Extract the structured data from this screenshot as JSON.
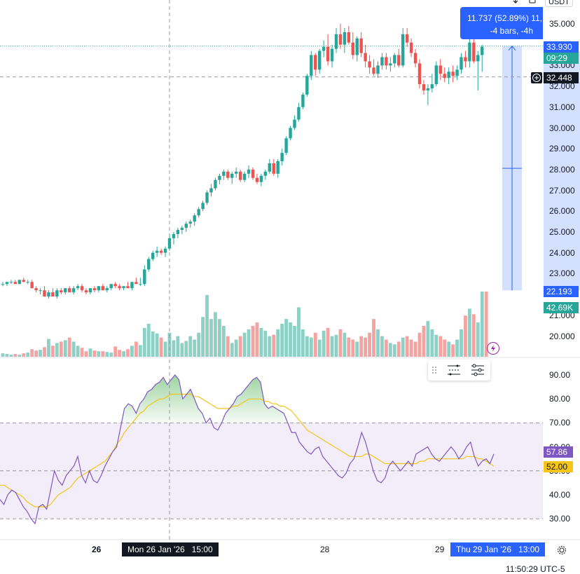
{
  "currency": "USDT",
  "clock": "11:50:29 UTC-5",
  "colors": {
    "up": "#26a69a",
    "down": "#ef5350",
    "up_vol": "#8dd0c6",
    "down_vol": "#f4a3a1",
    "rsi": "#7e57c2",
    "rsi_ma": "#f5c518",
    "measure": "#2962ff",
    "crosshair": "#9598a1"
  },
  "price_axis": {
    "ticks": [
      "35.000",
      "34.000",
      "33.000",
      "32.000",
      "31.000",
      "30.000",
      "29.000",
      "28.000",
      "27.000",
      "26.000",
      "25.000",
      "24.000",
      "23.000",
      "22.000",
      "21.000",
      "20.000"
    ],
    "last_price": "33.930",
    "countdown": "09:29",
    "crosshair_price": "32.448",
    "measure_low": "22.193",
    "volume_label": "42.69K"
  },
  "rsi_axis": {
    "ticks": [
      "90.00",
      "80.00",
      "70.00",
      "60.00",
      "50.00",
      "40.00",
      "30.00"
    ],
    "rsi_value": "57.86",
    "ma_value": "52.00"
  },
  "time_axis": {
    "labels": [
      "26",
      "28",
      "29"
    ],
    "crosshair_label": "Mon 26 Jan '26   15:00",
    "highlight_label": "Thu 29 Jan '26   13:00"
  },
  "measure_tooltip": {
    "line1": "11.737 (52.89%) 11,",
    "line2": "-4 bars, -4h"
  },
  "chart_data": {
    "type": "candlestick",
    "yrange": [
      19.5,
      35.5
    ],
    "candles": [
      [
        22.5,
        22.6,
        22.4,
        22.5
      ],
      [
        22.5,
        22.6,
        22.4,
        22.6
      ],
      [
        22.6,
        22.7,
        22.5,
        22.6
      ],
      [
        22.6,
        22.7,
        22.5,
        22.5
      ],
      [
        22.5,
        22.7,
        22.5,
        22.7
      ],
      [
        22.7,
        22.8,
        22.6,
        22.6
      ],
      [
        22.6,
        22.7,
        22.5,
        22.6
      ],
      [
        22.6,
        22.7,
        22.3,
        22.3
      ],
      [
        22.3,
        22.4,
        22.1,
        22.2
      ],
      [
        22.2,
        22.3,
        22.0,
        22.2
      ],
      [
        22.2,
        22.4,
        21.9,
        21.9
      ],
      [
        21.9,
        22.2,
        21.8,
        22.1
      ],
      [
        22.1,
        22.3,
        21.9,
        21.9
      ],
      [
        21.9,
        22.3,
        21.8,
        22.2
      ],
      [
        22.2,
        22.3,
        22.0,
        22.1
      ],
      [
        22.1,
        22.3,
        22.0,
        22.3
      ],
      [
        22.3,
        22.4,
        22.1,
        22.1
      ],
      [
        22.1,
        22.4,
        22.0,
        22.3
      ],
      [
        22.3,
        22.5,
        22.2,
        22.4
      ],
      [
        22.4,
        22.5,
        22.1,
        22.2
      ],
      [
        22.2,
        22.3,
        22.0,
        22.1
      ],
      [
        22.1,
        22.3,
        22.0,
        22.3
      ],
      [
        22.3,
        22.4,
        22.1,
        22.2
      ],
      [
        22.2,
        22.4,
        22.1,
        22.4
      ],
      [
        22.4,
        22.5,
        22.2,
        22.2
      ],
      [
        22.2,
        22.4,
        22.1,
        22.3
      ],
      [
        22.3,
        22.5,
        22.2,
        22.5
      ],
      [
        22.5,
        22.6,
        22.3,
        22.4
      ],
      [
        22.4,
        22.5,
        22.2,
        22.3
      ],
      [
        22.3,
        22.4,
        22.2,
        22.4
      ],
      [
        22.4,
        22.6,
        22.3,
        22.3
      ],
      [
        22.3,
        22.6,
        22.2,
        22.6
      ],
      [
        22.6,
        22.8,
        22.5,
        22.5
      ],
      [
        22.5,
        22.8,
        22.4,
        22.5
      ],
      [
        22.5,
        23.4,
        22.4,
        23.2
      ],
      [
        23.2,
        23.8,
        23.1,
        23.7
      ],
      [
        23.7,
        24.1,
        23.6,
        24.0
      ],
      [
        24.0,
        24.3,
        23.8,
        24.1
      ],
      [
        24.1,
        24.2,
        23.9,
        24.0
      ],
      [
        24.0,
        24.3,
        23.8,
        24.2
      ],
      [
        24.2,
        24.9,
        24.1,
        24.7
      ],
      [
        24.7,
        25.0,
        24.4,
        24.9
      ],
      [
        24.9,
        25.2,
        24.7,
        25.1
      ],
      [
        25.1,
        25.3,
        24.9,
        25.2
      ],
      [
        25.2,
        25.5,
        25.0,
        25.4
      ],
      [
        25.4,
        25.6,
        25.2,
        25.5
      ],
      [
        25.5,
        25.9,
        25.3,
        25.8
      ],
      [
        25.8,
        26.2,
        25.7,
        26.1
      ],
      [
        26.1,
        26.5,
        26.0,
        26.4
      ],
      [
        26.4,
        27.0,
        26.3,
        26.9
      ],
      [
        26.9,
        27.3,
        26.7,
        27.1
      ],
      [
        27.1,
        27.6,
        27.0,
        27.5
      ],
      [
        27.5,
        27.8,
        27.3,
        27.7
      ],
      [
        27.7,
        28.0,
        27.5,
        27.9
      ],
      [
        27.9,
        28.0,
        27.5,
        27.6
      ],
      [
        27.6,
        27.9,
        27.3,
        27.8
      ],
      [
        27.8,
        28.1,
        27.6,
        27.9
      ],
      [
        27.9,
        28.0,
        27.4,
        27.5
      ],
      [
        27.5,
        27.9,
        27.4,
        27.8
      ],
      [
        27.8,
        28.2,
        27.6,
        28.0
      ],
      [
        28.0,
        28.1,
        27.5,
        27.6
      ],
      [
        27.6,
        27.8,
        27.3,
        27.4
      ],
      [
        27.4,
        27.8,
        27.2,
        27.7
      ],
      [
        27.7,
        28.0,
        27.5,
        27.9
      ],
      [
        27.9,
        28.5,
        27.8,
        28.3
      ],
      [
        28.3,
        28.5,
        27.7,
        27.8
      ],
      [
        27.8,
        28.5,
        27.6,
        28.4
      ],
      [
        28.4,
        29.0,
        28.2,
        28.8
      ],
      [
        28.8,
        29.6,
        28.7,
        29.5
      ],
      [
        29.5,
        30.1,
        29.4,
        30.0
      ],
      [
        30.0,
        30.6,
        29.9,
        30.4
      ],
      [
        30.4,
        31.2,
        30.3,
        31.0
      ],
      [
        31.0,
        31.7,
        30.9,
        31.6
      ],
      [
        31.6,
        32.6,
        31.5,
        32.5
      ],
      [
        32.5,
        33.7,
        32.3,
        33.5
      ],
      [
        33.5,
        33.6,
        32.5,
        32.8
      ],
      [
        32.8,
        33.8,
        32.6,
        33.7
      ],
      [
        33.7,
        34.2,
        33.4,
        33.9
      ],
      [
        33.9,
        34.5,
        33.0,
        33.2
      ],
      [
        33.2,
        34.0,
        32.9,
        33.8
      ],
      [
        33.8,
        34.8,
        33.6,
        34.5
      ],
      [
        34.5,
        35.0,
        33.8,
        34.0
      ],
      [
        34.0,
        34.8,
        33.6,
        34.6
      ],
      [
        34.6,
        34.9,
        34.0,
        34.1
      ],
      [
        34.1,
        34.6,
        33.3,
        33.5
      ],
      [
        33.5,
        34.4,
        33.2,
        34.3
      ],
      [
        34.3,
        34.6,
        33.4,
        33.6
      ],
      [
        33.6,
        34.0,
        32.9,
        33.2
      ],
      [
        33.2,
        33.5,
        32.6,
        32.9
      ],
      [
        32.9,
        33.3,
        32.5,
        32.6
      ],
      [
        32.6,
        33.2,
        32.4,
        33.0
      ],
      [
        33.0,
        33.6,
        32.8,
        33.4
      ],
      [
        33.4,
        33.6,
        32.8,
        33.0
      ],
      [
        33.0,
        33.4,
        32.7,
        33.1
      ],
      [
        33.1,
        33.6,
        32.9,
        33.5
      ],
      [
        33.5,
        33.8,
        32.9,
        33.0
      ],
      [
        33.0,
        34.8,
        32.9,
        34.5
      ],
      [
        34.5,
        34.8,
        33.9,
        34.1
      ],
      [
        34.1,
        34.3,
        33.4,
        33.6
      ],
      [
        33.6,
        33.8,
        32.9,
        33.1
      ],
      [
        33.1,
        33.3,
        31.9,
        32.1
      ],
      [
        32.1,
        32.3,
        31.6,
        31.8
      ],
      [
        31.8,
        32.1,
        31.1,
        31.9
      ],
      [
        31.9,
        32.6,
        31.7,
        32.1
      ],
      [
        32.1,
        33.2,
        32.0,
        33.0
      ],
      [
        33.0,
        33.3,
        32.3,
        32.6
      ],
      [
        32.6,
        32.9,
        32.2,
        32.4
      ],
      [
        32.4,
        32.9,
        32.1,
        32.7
      ],
      [
        32.7,
        33.0,
        32.2,
        32.5
      ],
      [
        32.5,
        33.0,
        32.3,
        32.8
      ],
      [
        32.8,
        33.6,
        32.6,
        33.4
      ],
      [
        33.4,
        33.7,
        32.9,
        33.2
      ],
      [
        33.2,
        34.3,
        32.9,
        34.1
      ],
      [
        34.1,
        34.4,
        33.1,
        33.2
      ],
      [
        33.2,
        33.7,
        31.8,
        33.5
      ],
      [
        33.5,
        34.0,
        32.7,
        33.9
      ]
    ],
    "volume": [
      5,
      4,
      3,
      4,
      3,
      5,
      6,
      11,
      9,
      10,
      14,
      26,
      16,
      20,
      22,
      24,
      28,
      22,
      16,
      13,
      8,
      12,
      9,
      8,
      8,
      7,
      6,
      15,
      10,
      8,
      11,
      16,
      22,
      17,
      42,
      48,
      37,
      34,
      28,
      22,
      35,
      24,
      30,
      20,
      23,
      30,
      25,
      35,
      58,
      90,
      55,
      65,
      55,
      45,
      30,
      20,
      25,
      30,
      35,
      40,
      45,
      50,
      42,
      38,
      30,
      32,
      40,
      48,
      55,
      50,
      45,
      72,
      40,
      30,
      28,
      35,
      25,
      38,
      42,
      30,
      32,
      40,
      35,
      28,
      25,
      22,
      30,
      28,
      35,
      55,
      40,
      30,
      25,
      20,
      18,
      22,
      28,
      30,
      25,
      22,
      35,
      45,
      52,
      40,
      32,
      30,
      25,
      22,
      18,
      25,
      40,
      60,
      70,
      62,
      50,
      95,
      95
    ],
    "rsi": [
      38,
      36,
      40,
      42,
      41,
      38,
      35,
      33,
      30,
      28,
      35,
      36,
      34,
      42,
      50,
      46,
      44,
      48,
      50,
      52,
      56,
      48,
      45,
      50,
      46,
      45,
      48,
      52,
      55,
      58,
      60,
      68,
      76,
      78,
      77,
      74,
      78,
      80,
      83,
      84,
      86,
      87,
      89,
      86,
      88,
      90,
      88,
      80,
      82,
      84,
      80,
      76,
      74,
      70,
      72,
      68,
      67,
      70,
      74,
      76,
      78,
      81,
      82,
      84,
      86,
      88,
      89,
      87,
      78,
      76,
      77,
      76,
      75,
      74,
      70,
      66,
      66,
      62,
      60,
      58,
      57,
      59,
      60,
      56,
      54,
      52,
      50,
      48,
      47,
      49,
      53,
      55,
      60,
      66,
      62,
      56,
      50,
      46,
      45,
      47,
      52,
      54,
      52,
      50,
      52,
      54,
      52,
      57,
      58,
      59,
      60,
      57,
      55,
      54,
      56,
      58,
      60,
      58,
      55,
      57,
      60,
      62,
      56,
      52,
      54,
      55,
      53,
      57
    ],
    "rsi_ma": [
      44,
      44,
      43,
      42,
      41,
      40,
      39,
      37,
      36,
      35,
      35,
      35,
      35,
      36,
      38,
      40,
      41,
      42,
      43,
      45,
      47,
      48,
      49,
      50,
      51,
      52,
      53,
      54,
      56,
      58,
      61,
      63,
      66,
      68,
      70,
      72,
      74,
      75,
      77,
      78,
      79,
      80,
      80,
      81,
      82,
      82,
      82,
      82,
      82,
      82,
      81,
      81,
      80,
      79,
      78,
      77,
      76,
      76,
      76,
      76,
      77,
      77,
      78,
      79,
      80,
      80,
      80,
      80,
      79,
      79,
      78,
      78,
      77,
      77,
      76,
      75,
      73,
      71,
      69,
      67,
      66,
      65,
      64,
      63,
      62,
      61,
      60,
      59,
      58,
      57,
      56,
      56,
      56,
      56,
      57,
      57,
      56,
      55,
      54,
      53,
      53,
      53,
      53,
      53,
      53,
      53,
      53,
      53,
      54,
      54,
      55,
      55,
      55,
      55,
      55,
      55,
      55,
      55,
      55,
      55,
      56,
      56,
      56,
      55,
      55,
      54,
      53,
      52
    ],
    "rsi_levels": [
      70,
      50,
      30
    ],
    "measure": {
      "from": 22.193,
      "to": 33.93
    },
    "crosshair_price": 32.448
  }
}
